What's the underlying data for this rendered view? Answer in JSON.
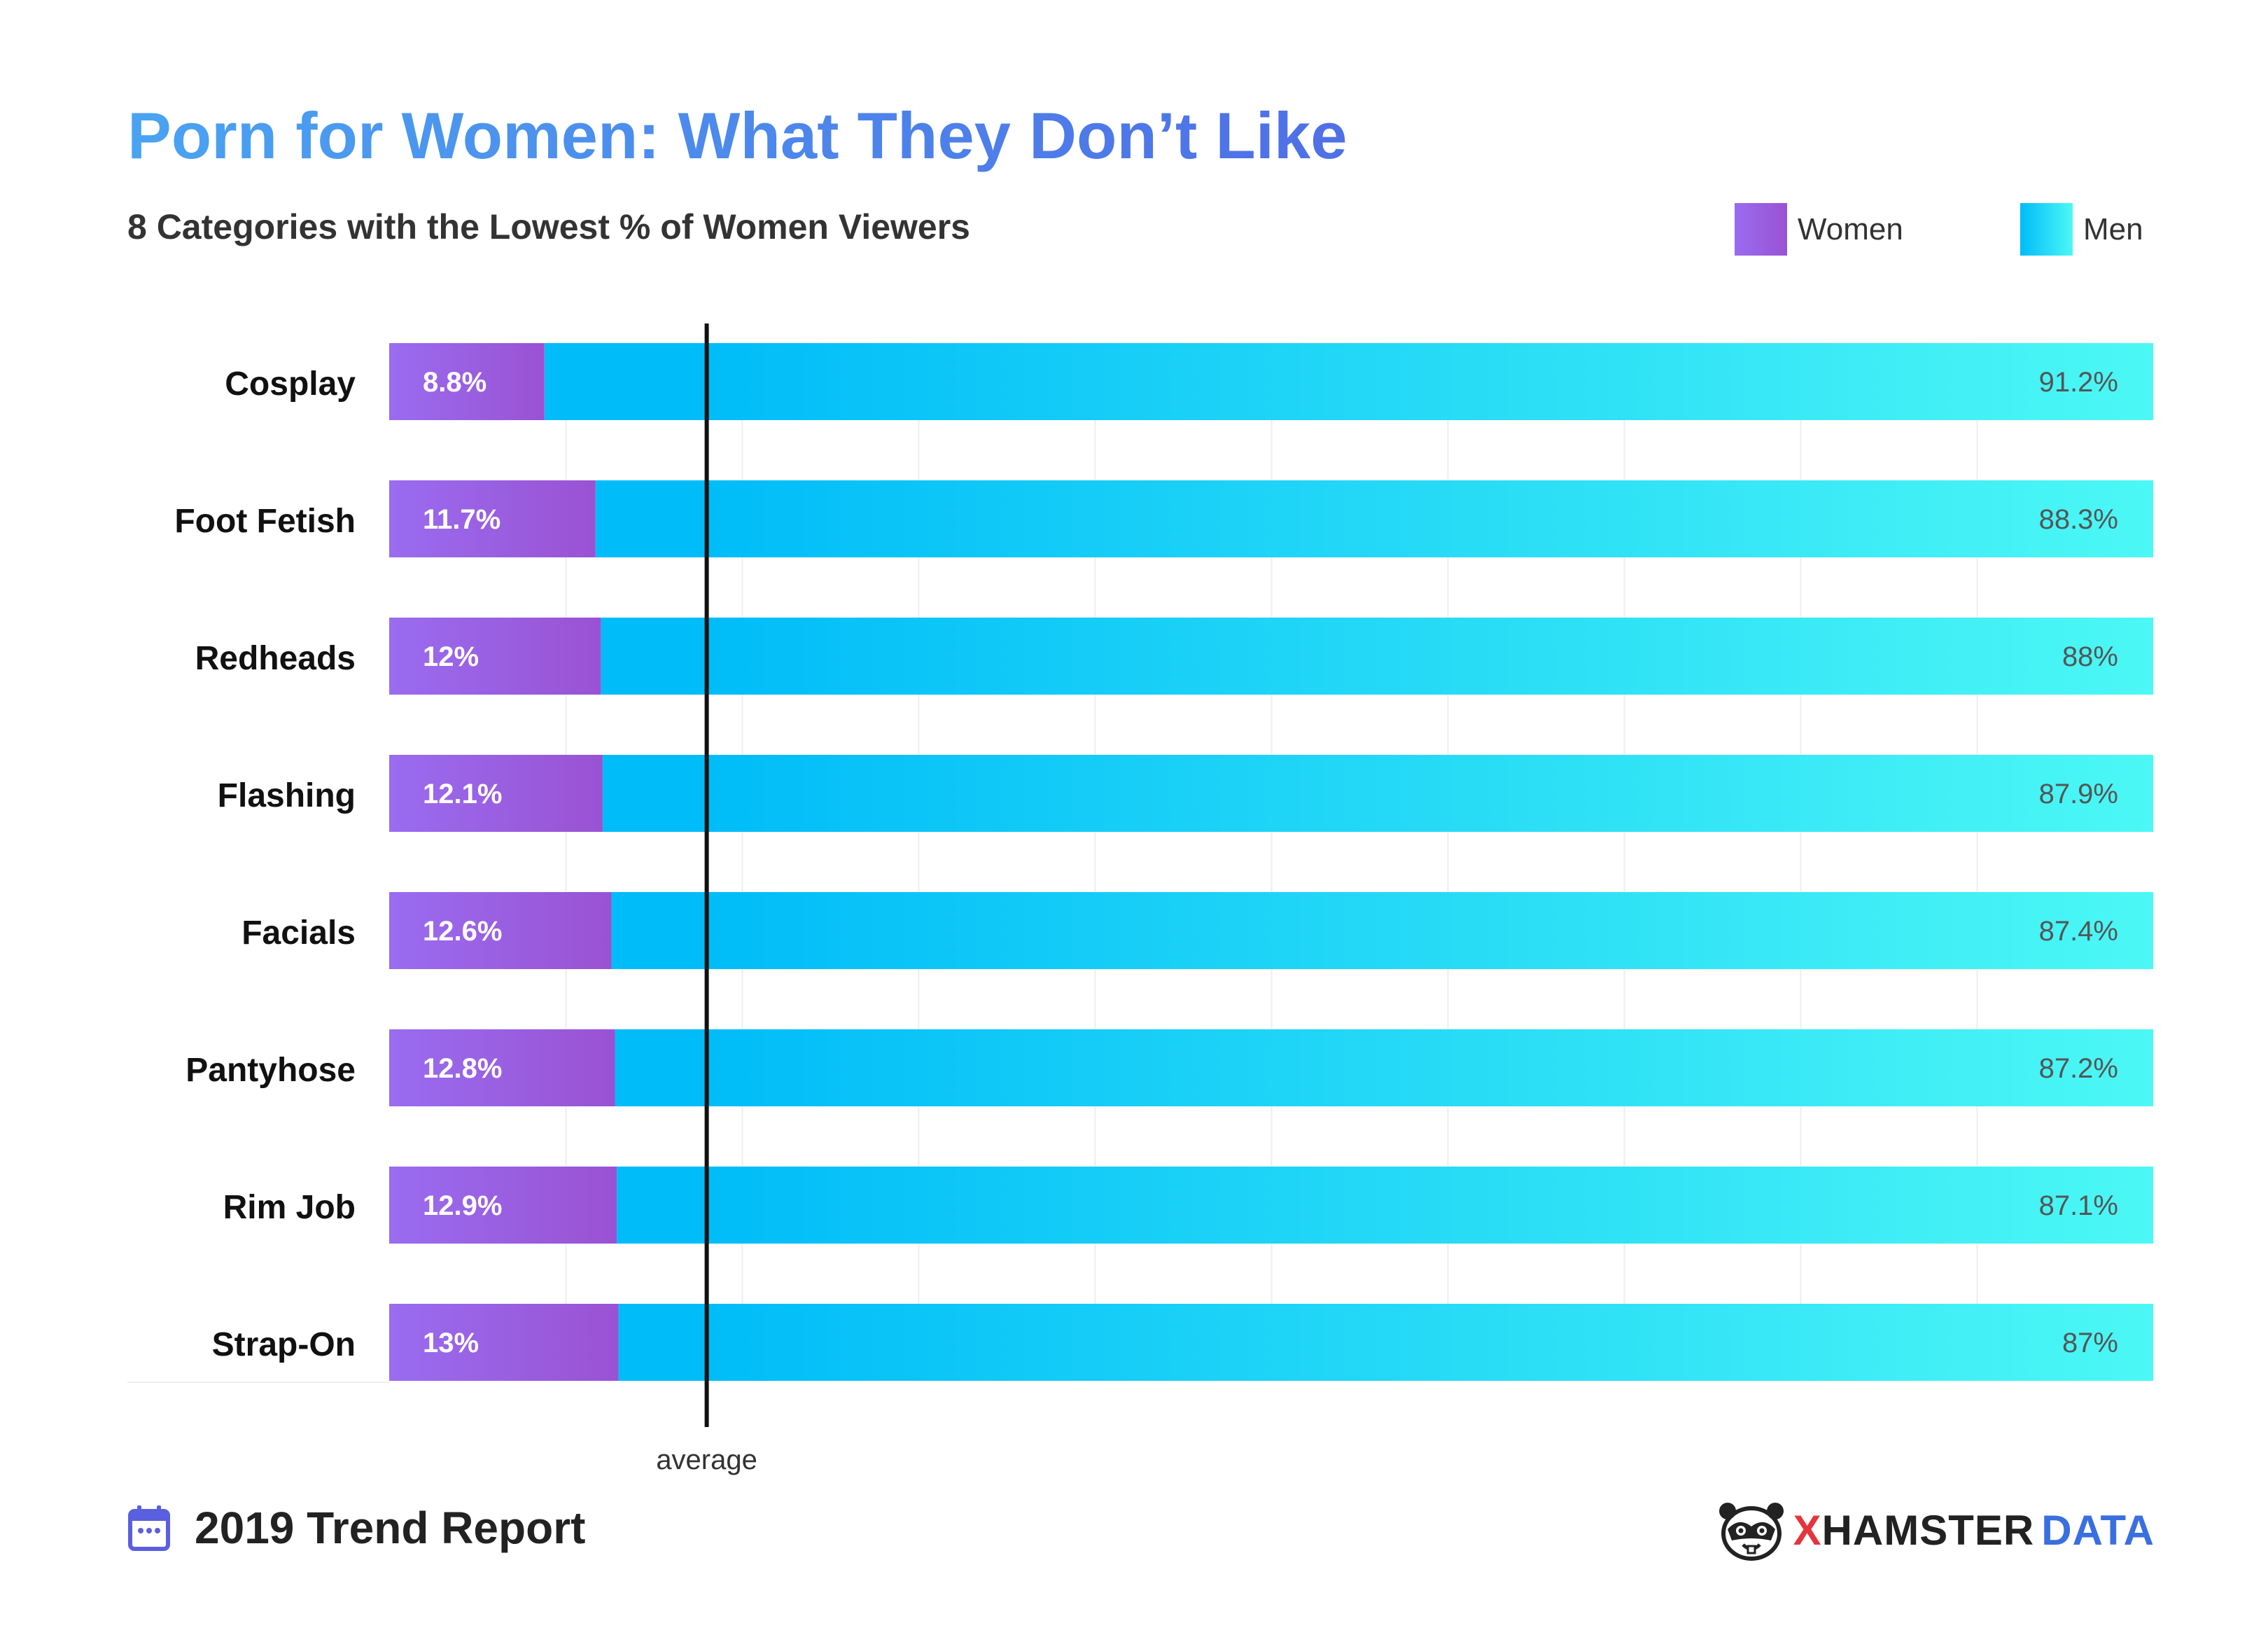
{
  "header": {
    "title": "Porn for Women: What They Don’t Like",
    "subtitle": "8 Categories with the Lowest % of Women Viewers"
  },
  "legend": [
    {
      "label": "Women",
      "color_start": "#9a6cf0",
      "color_end": "#9a52d3"
    },
    {
      "label": "Men",
      "color_start": "#00bcf8",
      "color_end": "#4cf8f5"
    }
  ],
  "footer": {
    "report": "2019 Trend Report",
    "brand_part1": "XHAMSTER",
    "brand_part2": "DATA",
    "calendar_icon": "calendar-icon",
    "logo_icon": "hamster-logo-icon"
  },
  "chart_data": {
    "type": "bar",
    "orientation": "horizontal",
    "stacked": true,
    "categories": [
      "Cosplay",
      "Foot Fetish",
      "Redheads",
      "Flashing",
      "Facials",
      "Pantyhose",
      "Rim Job",
      "Strap-On"
    ],
    "series": [
      {
        "name": "Women",
        "values": [
          8.8,
          11.7,
          12,
          12.1,
          12.6,
          12.8,
          12.9,
          13
        ],
        "labels": [
          "8.8%",
          "11.7%",
          "12%",
          "12.1%",
          "12.6%",
          "12.8%",
          "12.9%",
          "13%"
        ]
      },
      {
        "name": "Men",
        "values": [
          91.2,
          88.3,
          88,
          87.9,
          87.4,
          87.2,
          87.1,
          87
        ],
        "labels": [
          "91.2%",
          "88.3%",
          "88%",
          "87.9%",
          "87.4%",
          "87.2%",
          "87.1%",
          "87%"
        ]
      }
    ],
    "xlim": [
      0,
      100
    ],
    "reference_line": {
      "label": "average",
      "value": 18
    },
    "grid": true
  }
}
